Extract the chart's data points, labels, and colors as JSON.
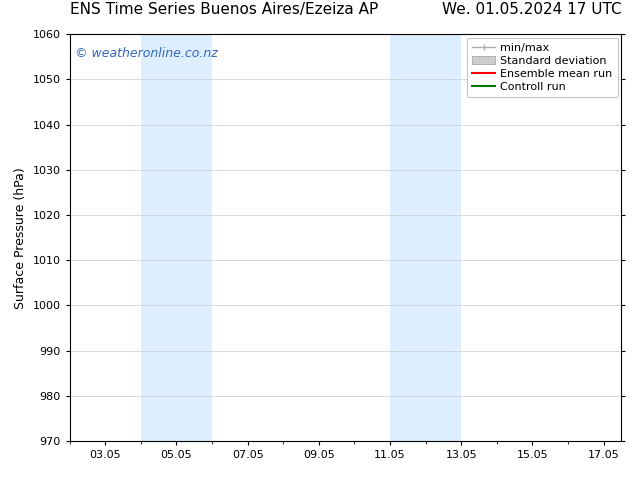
{
  "title_left": "ENS Time Series Buenos Aires/Ezeiza AP",
  "title_right": "We. 01.05.2024 17 UTC",
  "ylabel": "Surface Pressure (hPa)",
  "ylim": [
    970,
    1060
  ],
  "yticks": [
    970,
    980,
    990,
    1000,
    1010,
    1020,
    1030,
    1040,
    1050,
    1060
  ],
  "xlim": [
    2.0,
    17.5
  ],
  "xtick_positions": [
    3,
    5,
    7,
    9,
    11,
    13,
    15,
    17
  ],
  "xtick_labels": [
    "03.05",
    "05.05",
    "07.05",
    "09.05",
    "11.05",
    "13.05",
    "15.05",
    "17.05"
  ],
  "shaded_bands": [
    {
      "x_start": 4.0,
      "x_end": 6.0
    },
    {
      "x_start": 11.0,
      "x_end": 13.0
    }
  ],
  "shaded_color": "#ddeeff",
  "watermark_text": "© weatheronline.co.nz",
  "watermark_color": "#3366bb",
  "watermark_fontsize": 9,
  "legend_labels": [
    "min/max",
    "Standard deviation",
    "Ensemble mean run",
    "Controll run"
  ],
  "legend_colors": [
    "#aaaaaa",
    "#cccccc",
    "#ff0000",
    "#007700"
  ],
  "background_color": "#ffffff",
  "grid_color": "#cccccc",
  "title_fontsize": 11,
  "axis_label_fontsize": 9,
  "tick_fontsize": 8,
  "legend_fontsize": 8
}
